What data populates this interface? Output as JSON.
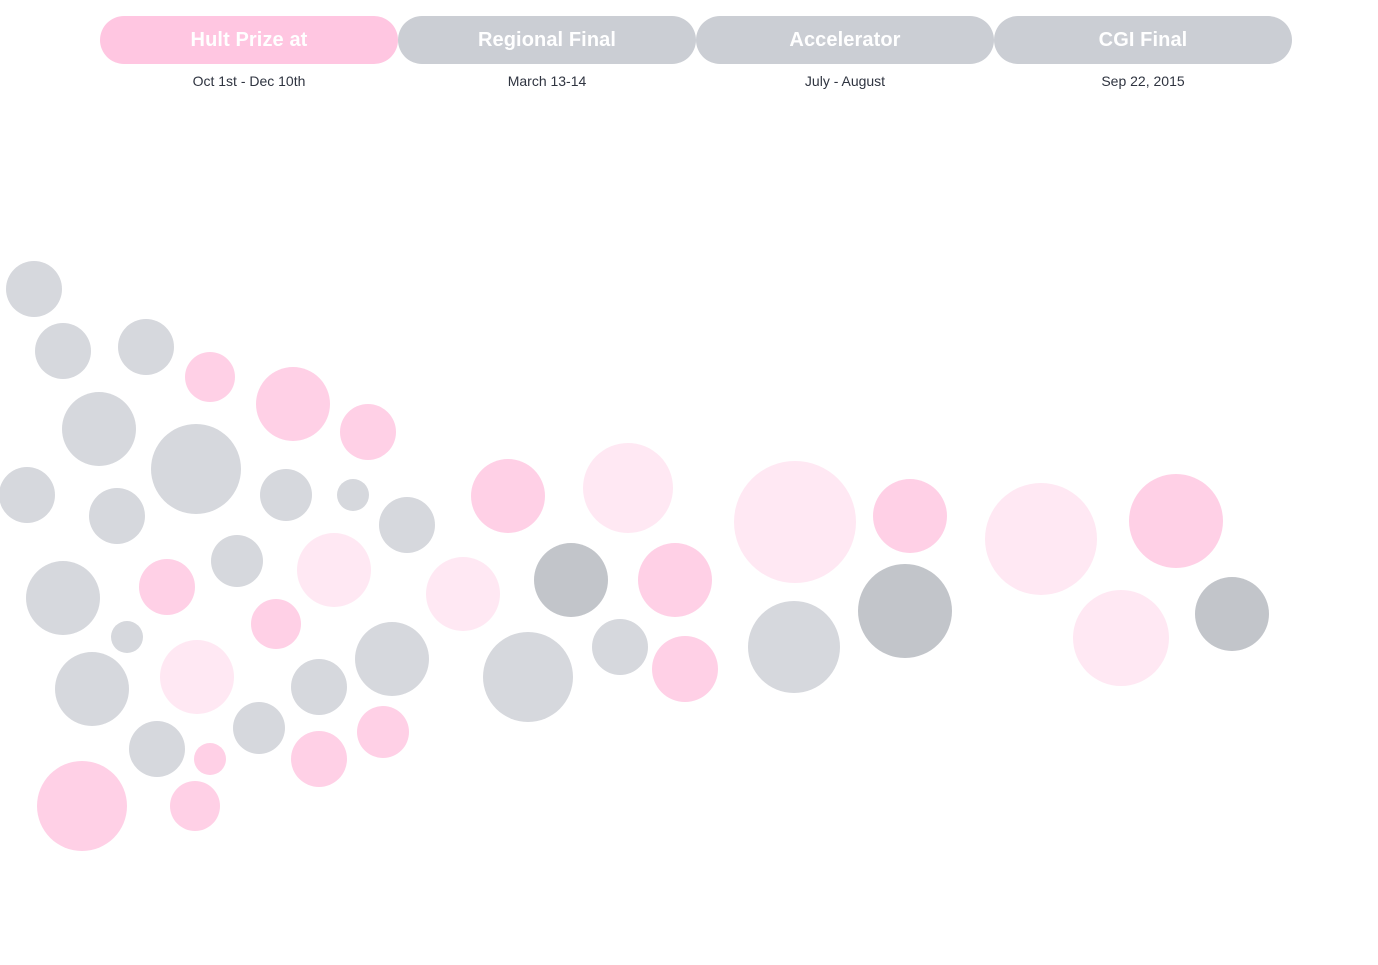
{
  "colors": {
    "active": "#FFC6E1",
    "inactive": "#CBCED4"
  },
  "stages": [
    {
      "label": "Hult Prize at",
      "date": "Oct 1st - Dec 10th",
      "active": true
    },
    {
      "label": "Regional Final",
      "date": "March 13-14",
      "active": false
    },
    {
      "label": "Accelerator",
      "date": "July - August",
      "active": false
    },
    {
      "label": "CGI Final",
      "date": "Sep 22, 2015",
      "active": false
    }
  ]
}
